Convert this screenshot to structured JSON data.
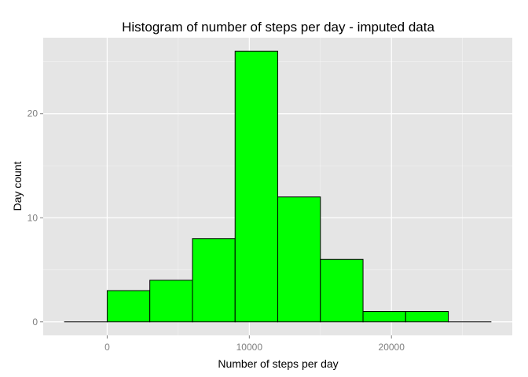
{
  "chart_data": {
    "type": "bar",
    "title": "Histogram of number of steps per day - imputed data",
    "xlabel": "Number of steps per day",
    "ylabel": "Day count",
    "bins": [
      {
        "start": -3000,
        "end": 0,
        "count": 0
      },
      {
        "start": 0,
        "end": 3000,
        "count": 3
      },
      {
        "start": 3000,
        "end": 6000,
        "count": 4
      },
      {
        "start": 6000,
        "end": 9000,
        "count": 8
      },
      {
        "start": 9000,
        "end": 12000,
        "count": 26
      },
      {
        "start": 12000,
        "end": 15000,
        "count": 12
      },
      {
        "start": 15000,
        "end": 18000,
        "count": 6
      },
      {
        "start": 18000,
        "end": 21000,
        "count": 1
      },
      {
        "start": 21000,
        "end": 24000,
        "count": 1
      },
      {
        "start": 24000,
        "end": 27000,
        "count": 0
      }
    ],
    "xlim": [
      -4500,
      28500
    ],
    "ylim": [
      -1.3,
      27.3
    ],
    "x_ticks": [
      0,
      10000,
      20000
    ],
    "y_ticks": [
      0,
      10,
      20
    ],
    "grid": true,
    "colors": {
      "panel_background": "#e5e5e5",
      "grid": "#ffffff",
      "bar_fill": "#00ff00",
      "bar_outline": "#000000"
    }
  }
}
